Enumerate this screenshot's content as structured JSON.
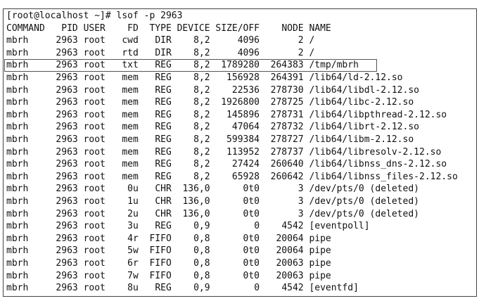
{
  "terminal": {
    "prompt": "[root@localhost ~]# lsof -p 2963",
    "header": [
      "COMMAND",
      "PID",
      "USER",
      "FD",
      "TYPE",
      "DEVICE",
      "SIZE/OFF",
      "NODE",
      "NAME"
    ],
    "rows": [
      [
        "mbrh",
        "2963",
        "root",
        "cwd",
        "DIR",
        "8,2",
        "4096",
        "2",
        "/"
      ],
      [
        "mbrh",
        "2963",
        "root",
        "rtd",
        "DIR",
        "8,2",
        "4096",
        "2",
        "/"
      ],
      [
        "mbrh",
        "2963",
        "root",
        "txt",
        "REG",
        "8,2",
        "1789280",
        "264383",
        "/tmp/mbrh"
      ],
      [
        "mbrh",
        "2963",
        "root",
        "mem",
        "REG",
        "8,2",
        "156928",
        "264391",
        "/lib64/ld-2.12.so"
      ],
      [
        "mbrh",
        "2963",
        "root",
        "mem",
        "REG",
        "8,2",
        "22536",
        "278730",
        "/lib64/libdl-2.12.so"
      ],
      [
        "mbrh",
        "2963",
        "root",
        "mem",
        "REG",
        "8,2",
        "1926800",
        "278725",
        "/lib64/libc-2.12.so"
      ],
      [
        "mbrh",
        "2963",
        "root",
        "mem",
        "REG",
        "8,2",
        "145896",
        "278731",
        "/lib64/libpthread-2.12.so"
      ],
      [
        "mbrh",
        "2963",
        "root",
        "mem",
        "REG",
        "8,2",
        "47064",
        "278732",
        "/lib64/librt-2.12.so"
      ],
      [
        "mbrh",
        "2963",
        "root",
        "mem",
        "REG",
        "8,2",
        "599384",
        "278727",
        "/lib64/libm-2.12.so"
      ],
      [
        "mbrh",
        "2963",
        "root",
        "mem",
        "REG",
        "8,2",
        "113952",
        "278737",
        "/lib64/libresolv-2.12.so"
      ],
      [
        "mbrh",
        "2963",
        "root",
        "mem",
        "REG",
        "8,2",
        "27424",
        "260640",
        "/lib64/libnss_dns-2.12.so"
      ],
      [
        "mbrh",
        "2963",
        "root",
        "mem",
        "REG",
        "8,2",
        "65928",
        "260642",
        "/lib64/libnss_files-2.12.so"
      ],
      [
        "mbrh",
        "2963",
        "root",
        "0u",
        "CHR",
        "136,0",
        "0t0",
        "3",
        "/dev/pts/0 (deleted)"
      ],
      [
        "mbrh",
        "2963",
        "root",
        "1u",
        "CHR",
        "136,0",
        "0t0",
        "3",
        "/dev/pts/0 (deleted)"
      ],
      [
        "mbrh",
        "2963",
        "root",
        "2u",
        "CHR",
        "136,0",
        "0t0",
        "3",
        "/dev/pts/0 (deleted)"
      ],
      [
        "mbrh",
        "2963",
        "root",
        "3u",
        "REG",
        "0,9",
        "0",
        "4542",
        "[eventpoll]"
      ],
      [
        "mbrh",
        "2963",
        "root",
        "4r",
        "FIFO",
        "0,8",
        "0t0",
        "20064",
        "pipe"
      ],
      [
        "mbrh",
        "2963",
        "root",
        "5w",
        "FIFO",
        "0,8",
        "0t0",
        "20064",
        "pipe"
      ],
      [
        "mbrh",
        "2963",
        "root",
        "6r",
        "FIFO",
        "0,8",
        "0t0",
        "20063",
        "pipe"
      ],
      [
        "mbrh",
        "2963",
        "root",
        "7w",
        "FIFO",
        "0,8",
        "0t0",
        "20063",
        "pipe"
      ],
      [
        "mbrh",
        "2963",
        "root",
        "8u",
        "REG",
        "0,9",
        "0",
        "4542",
        "[eventfd]"
      ]
    ]
  }
}
